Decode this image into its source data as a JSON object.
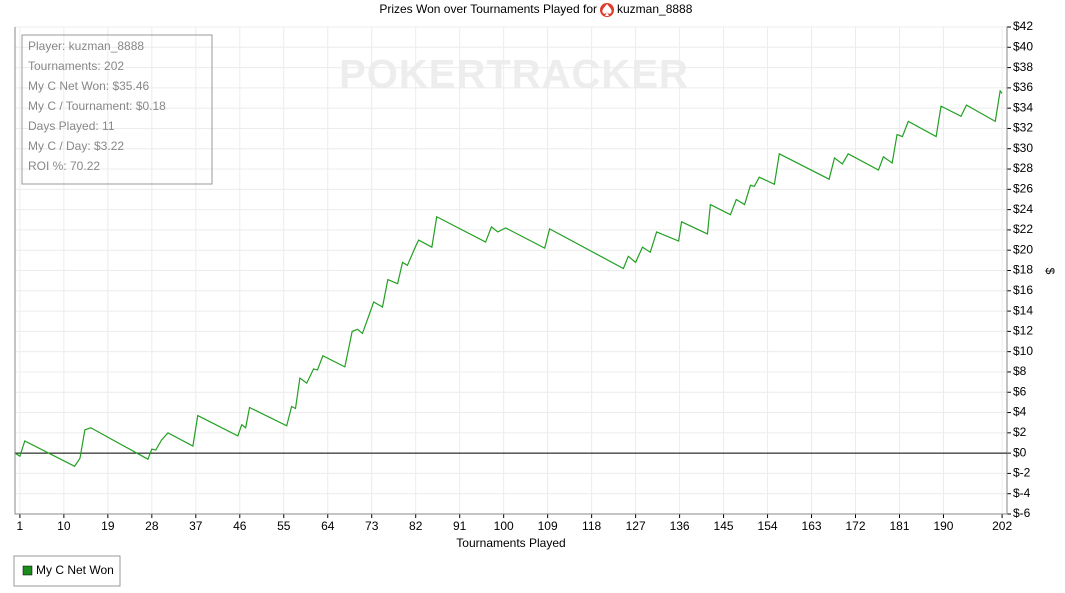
{
  "chart_data": {
    "type": "line",
    "title": "Prizes Won over Tournaments Played for",
    "player": "kuzman_8888",
    "watermark": "POKERTRACKER",
    "x_label": "Tournaments Played",
    "y_label": "$",
    "stats": [
      "Player: kuzman_8888",
      "Tournaments: 202",
      "My C Net Won: $35.46",
      "My C / Tournament: $0.18",
      "Days Played: 11",
      "My C / Day: $3.22",
      "ROI %: 70.22"
    ],
    "x": [
      0,
      1,
      2,
      12.2,
      13.3,
      14.3,
      15.5,
      27.2,
      28,
      28.8,
      30,
      31.3,
      36.4,
      37.4,
      45.6,
      46.4,
      47.2,
      48,
      55.6,
      56.6,
      57.4,
      58.3,
      59.7,
      61.1,
      61.9,
      63,
      67.5,
      69,
      70.1,
      71.1,
      72.6,
      73.4,
      75.2,
      76.3,
      78.3,
      79.3,
      80.3,
      82,
      82.6,
      85.3,
      86.3,
      96.3,
      97.5,
      98.8,
      100.4,
      108.4,
      109.4,
      124.5,
      125.5,
      127,
      128.4,
      130,
      131.3,
      135.8,
      136.4,
      141.7,
      142.3,
      146.4,
      147.6,
      149.3,
      150.5,
      151.3,
      152.3,
      155.4,
      156.4,
      166.6,
      167.7,
      169.3,
      170.5,
      176.7,
      177.7,
      179.5,
      180.5,
      181.6,
      182.8,
      188.5,
      189.5,
      193.6,
      194.7,
      200.6,
      201.6,
      202
    ],
    "series": [
      {
        "name": "My C Net Won",
        "color": "#22a022",
        "legend_color": "#1c8c1c",
        "values": [
          0,
          -0.3,
          1.2,
          -1.3,
          -0.5,
          2.3,
          2.5,
          -0.6,
          0.4,
          0.3,
          1.3,
          2.0,
          0.7,
          3.7,
          1.7,
          2.8,
          2.5,
          4.5,
          2.7,
          4.6,
          4.4,
          7.4,
          6.9,
          8.3,
          8.2,
          9.6,
          8.5,
          12.0,
          12.2,
          11.8,
          13.8,
          14.9,
          14.4,
          17.1,
          16.7,
          18.8,
          18.5,
          20.4,
          21.0,
          20.3,
          23.3,
          20.8,
          22.3,
          21.8,
          22.2,
          20.2,
          22.1,
          18.2,
          19.4,
          18.8,
          20.3,
          19.8,
          21.8,
          20.9,
          22.8,
          21.6,
          24.5,
          23.5,
          25.0,
          24.5,
          26.4,
          26.3,
          27.2,
          26.5,
          29.5,
          27.0,
          29.1,
          28.5,
          29.5,
          27.9,
          29.2,
          28.6,
          31.4,
          31.2,
          32.7,
          31.2,
          34.2,
          33.2,
          34.3,
          32.7,
          35.7,
          35.46
        ]
      }
    ],
    "xlim": [
      0,
      203
    ],
    "xticks": [
      1,
      10,
      19,
      28,
      37,
      46,
      55,
      64,
      73,
      82,
      91,
      100,
      109,
      118,
      127,
      136,
      145,
      154,
      163,
      172,
      181,
      190,
      202
    ],
    "ylim": [
      -6,
      42
    ],
    "yticks": [
      {
        "value": -6,
        "label": "$-6"
      },
      {
        "value": -4,
        "label": "$-4"
      },
      {
        "value": -2,
        "label": "$-2"
      },
      {
        "value": 0,
        "label": "$0"
      },
      {
        "value": 2,
        "label": "$2"
      },
      {
        "value": 4,
        "label": "$4"
      },
      {
        "value": 6,
        "label": "$6"
      },
      {
        "value": 8,
        "label": "$8"
      },
      {
        "value": 10,
        "label": "$10"
      },
      {
        "value": 12,
        "label": "$12"
      },
      {
        "value": 14,
        "label": "$14"
      },
      {
        "value": 16,
        "label": "$16"
      },
      {
        "value": 18,
        "label": "$18"
      },
      {
        "value": 20,
        "label": "$20"
      },
      {
        "value": 22,
        "label": "$22"
      },
      {
        "value": 24,
        "label": "$24"
      },
      {
        "value": 26,
        "label": "$26"
      },
      {
        "value": 28,
        "label": "$28"
      },
      {
        "value": 30,
        "label": "$30"
      },
      {
        "value": 32,
        "label": "$32"
      },
      {
        "value": 34,
        "label": "$34"
      },
      {
        "value": 36,
        "label": "$36"
      },
      {
        "value": 38,
        "label": "$38"
      },
      {
        "value": 40,
        "label": "$40"
      },
      {
        "value": 42,
        "label": "$42"
      }
    ],
    "grid": true,
    "zero_line": true
  }
}
